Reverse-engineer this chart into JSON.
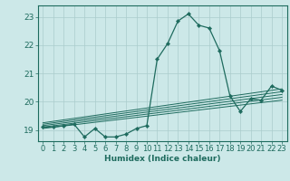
{
  "title": "",
  "xlabel": "Humidex (Indice chaleur)",
  "background_color": "#cce8e8",
  "line_color": "#1e6b5e",
  "x_ticks": [
    0,
    1,
    2,
    3,
    4,
    5,
    6,
    7,
    8,
    9,
    10,
    11,
    12,
    13,
    14,
    15,
    16,
    17,
    18,
    19,
    20,
    21,
    22,
    23
  ],
  "ylim": [
    18.6,
    23.4
  ],
  "xlim": [
    -0.5,
    23.5
  ],
  "humidex_line": [
    19.1,
    19.1,
    19.15,
    19.2,
    18.75,
    19.05,
    18.75,
    18.75,
    18.85,
    19.05,
    19.15,
    21.5,
    22.05,
    22.85,
    23.1,
    22.7,
    22.6,
    21.8,
    20.2,
    19.65,
    20.1,
    20.05,
    20.55,
    20.4
  ],
  "trend_lines": [
    {
      "x": [
        0,
        23
      ],
      "y": [
        19.05,
        20.05
      ]
    },
    {
      "x": [
        0,
        23
      ],
      "y": [
        19.1,
        20.15
      ]
    },
    {
      "x": [
        0,
        23
      ],
      "y": [
        19.15,
        20.25
      ]
    },
    {
      "x": [
        0,
        23
      ],
      "y": [
        19.2,
        20.35
      ]
    },
    {
      "x": [
        0,
        23
      ],
      "y": [
        19.25,
        20.45
      ]
    }
  ],
  "grid_color": "#aacccc",
  "yticks": [
    19,
    20,
    21,
    22,
    23
  ],
  "tick_fontsize": 6.0,
  "xlabel_fontsize": 6.5
}
